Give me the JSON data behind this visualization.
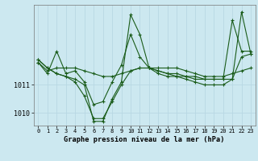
{
  "title": "Graphe pression niveau de la mer (hPa)",
  "bg_color": "#cce8f0",
  "grid_color": "#b8d8e4",
  "line_color": "#1a5c1a",
  "x_labels": [
    "0",
    "1",
    "2",
    "3",
    "4",
    "5",
    "6",
    "7",
    "8",
    "9",
    "10",
    "11",
    "12",
    "13",
    "14",
    "15",
    "16",
    "17",
    "18",
    "19",
    "20",
    "21",
    "22",
    "23"
  ],
  "ylim": [
    1009.55,
    1013.85
  ],
  "yticks": [
    1010,
    1011
  ],
  "series": [
    [
      1011.8,
      1011.4,
      1012.2,
      1011.4,
      1011.5,
      1011.1,
      1010.3,
      1010.4,
      1011.1,
      1011.7,
      1012.8,
      1012.0,
      1011.6,
      1011.5,
      1011.4,
      1011.4,
      1011.3,
      1011.3,
      1011.2,
      1011.2,
      1011.2,
      1013.3,
      1012.2,
      1012.2
    ],
    [
      1011.8,
      1011.5,
      1011.6,
      1011.6,
      1011.6,
      1011.5,
      1011.4,
      1011.3,
      1011.3,
      1011.4,
      1011.5,
      1011.6,
      1011.6,
      1011.6,
      1011.6,
      1011.6,
      1011.5,
      1011.4,
      1011.3,
      1011.3,
      1011.3,
      1011.4,
      1011.5,
      1011.6
    ],
    [
      1011.9,
      1011.6,
      1011.4,
      1011.3,
      1011.2,
      1011.0,
      1009.7,
      1009.7,
      1010.5,
      1011.1,
      1013.5,
      1012.8,
      1011.6,
      1011.4,
      1011.3,
      1011.3,
      1011.3,
      1011.2,
      1011.2,
      1011.2,
      1011.2,
      1011.2,
      1013.6,
      1012.1
    ],
    [
      1011.9,
      1011.6,
      1011.4,
      1011.3,
      1011.1,
      1010.6,
      1009.8,
      1009.8,
      1010.4,
      1011.0,
      1011.5,
      1011.6,
      1011.6,
      1011.5,
      1011.4,
      1011.3,
      1011.2,
      1011.1,
      1011.0,
      1011.0,
      1011.0,
      1011.2,
      1012.0,
      1012.1
    ]
  ],
  "figsize": [
    3.2,
    2.0
  ],
  "dpi": 100,
  "label_fontsize": 5.0,
  "ylabel_fontsize": 6.0,
  "title_fontsize": 6.2,
  "linewidth": 0.8,
  "markersize": 3.0
}
